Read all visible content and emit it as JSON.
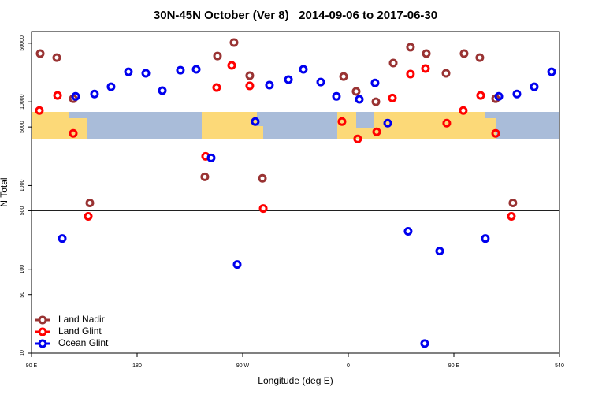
{
  "chart_data": {
    "type": "scatter",
    "title": "30N-45N October (Ver 8)   2014-09-06 to 2017-06-30",
    "xlabel": "Longitude (deg E)",
    "ylabel": "N Total",
    "log_y": true,
    "legend": "bottom-left",
    "hline": 500,
    "xlim": [
      90,
      540
    ],
    "ylim": [
      10,
      69000
    ],
    "xticks": [
      {
        "value": 90,
        "label": "90 E"
      },
      180,
      {
        "value": 270,
        "label": "90 W"
      },
      {
        "value": 360,
        "label": "0"
      },
      {
        "value": 450,
        "label": "90 E"
      },
      540
    ],
    "yticks": [
      10,
      50,
      100,
      500,
      1000,
      5000,
      10000,
      50000
    ],
    "series": [
      {
        "name": "Land Nadir",
        "color": "#993333",
        "x": [
          97.4,
          111.5,
          125.6,
          139.7,
          237.7,
          248.5,
          262.6,
          276,
          286.8,
          356,
          366.7,
          383.5,
          398.3,
          413,
          426.5,
          443.3,
          458.7,
          472.1,
          485.6,
          500.3
        ],
        "values": [
          37600,
          33700,
          10900,
          620,
          1270,
          35200,
          51000,
          20500,
          1220,
          20000,
          13300,
          10000,
          29000,
          44800,
          37600,
          21900,
          37600,
          33700,
          10900,
          620
        ]
      },
      {
        "name": "Land Glint",
        "color": "#ff0000",
        "x": [
          96.7,
          112.2,
          125.6,
          138.4,
          238.4,
          247.8,
          260.6,
          276,
          287.5,
          354.6,
          368,
          384.2,
          397.6,
          413,
          425.8,
          443.9,
          458,
          472.8,
          485.6,
          499
        ],
        "values": [
          7870,
          11900,
          4200,
          429,
          2230,
          14800,
          27200,
          15500,
          532,
          5810,
          3600,
          4380,
          11100,
          21400,
          24900,
          5560,
          7870,
          11900,
          4200,
          429
        ]
      },
      {
        "name": "Ocean Glint",
        "color": "#0000ee",
        "x": [
          116.2,
          127.6,
          143.7,
          157.8,
          172.6,
          187.4,
          201.5,
          216.9,
          230.4,
          243.1,
          265.3,
          280.7,
          292.8,
          309,
          321.7,
          336.5,
          349.9,
          369.4,
          382.8,
          393.6,
          411,
          425.1,
          437.9,
          476.8,
          488.3,
          503.7,
          518.5,
          533.3
        ],
        "values": [
          233,
          11600,
          12400,
          15100,
          22800,
          21900,
          13600,
          23800,
          24400,
          2140,
          114,
          5810,
          15800,
          18400,
          24400,
          17200,
          11600,
          10700,
          16800,
          5560,
          284,
          13,
          165,
          233,
          11600,
          12400,
          15100,
          22800
        ]
      }
    ]
  }
}
